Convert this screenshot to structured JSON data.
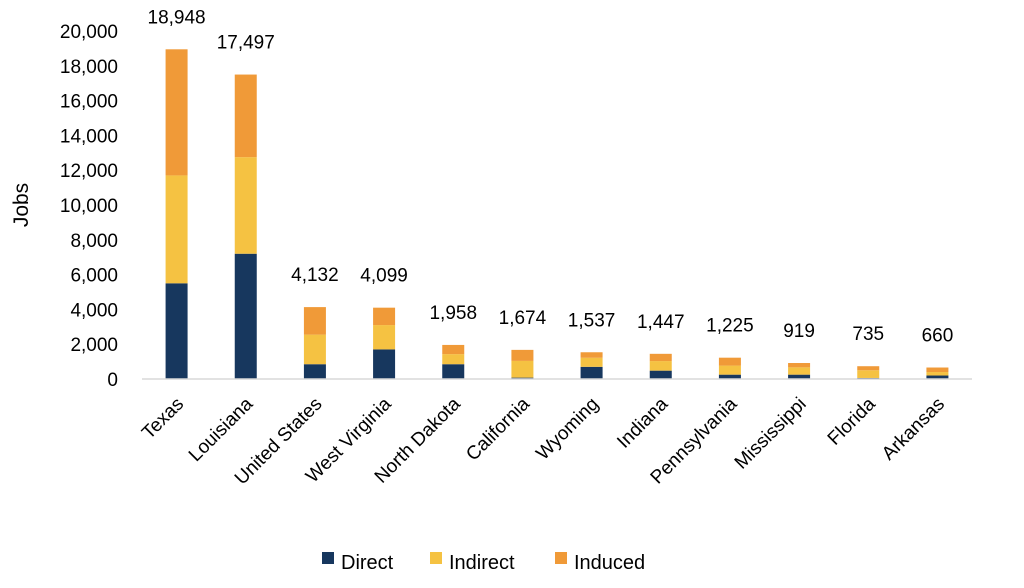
{
  "chart_data": {
    "type": "bar",
    "stacked": true,
    "title": "",
    "xlabel": "",
    "ylabel": "Jobs",
    "ylim": [
      0,
      20000
    ],
    "y_ticks": [
      0,
      2000,
      4000,
      6000,
      8000,
      10000,
      12000,
      14000,
      16000,
      18000,
      20000
    ],
    "y_tick_labels": [
      "0",
      "2,000",
      "4,000",
      "6,000",
      "8,000",
      "10,000",
      "12,000",
      "14,000",
      "16,000",
      "18,000",
      "20,000"
    ],
    "grid": false,
    "legend_position": "bottom",
    "categories": [
      "Texas",
      "Louisiana",
      "United States",
      "West Virginia",
      "North Dakota",
      "California",
      "Wyoming",
      "Indiana",
      "Pennsylvania",
      "Mississippi",
      "Florida",
      "Arkansas"
    ],
    "series": [
      {
        "name": "Direct",
        "color": "#17375e",
        "values": [
          5500,
          7200,
          850,
          1700,
          850,
          80,
          700,
          480,
          250,
          250,
          60,
          200
        ]
      },
      {
        "name": "Indirect",
        "color": "#f5c242",
        "values": [
          6200,
          5550,
          1700,
          1400,
          580,
          960,
          520,
          550,
          520,
          420,
          440,
          200
        ]
      },
      {
        "name": "Induced",
        "color": "#f09a38",
        "values": [
          7248,
          4747,
          1582,
          999,
          528,
          634,
          317,
          417,
          455,
          249,
          235,
          260
        ]
      }
    ],
    "totals": [
      18948,
      17497,
      4132,
      4099,
      1958,
      1674,
      1537,
      1447,
      1225,
      919,
      735,
      660
    ],
    "total_labels": [
      "18,948",
      "17,497",
      "4,132",
      "4,099",
      "1,958",
      "1,674",
      "1,537",
      "1,447",
      "1,225",
      "919",
      "735",
      "660"
    ]
  }
}
